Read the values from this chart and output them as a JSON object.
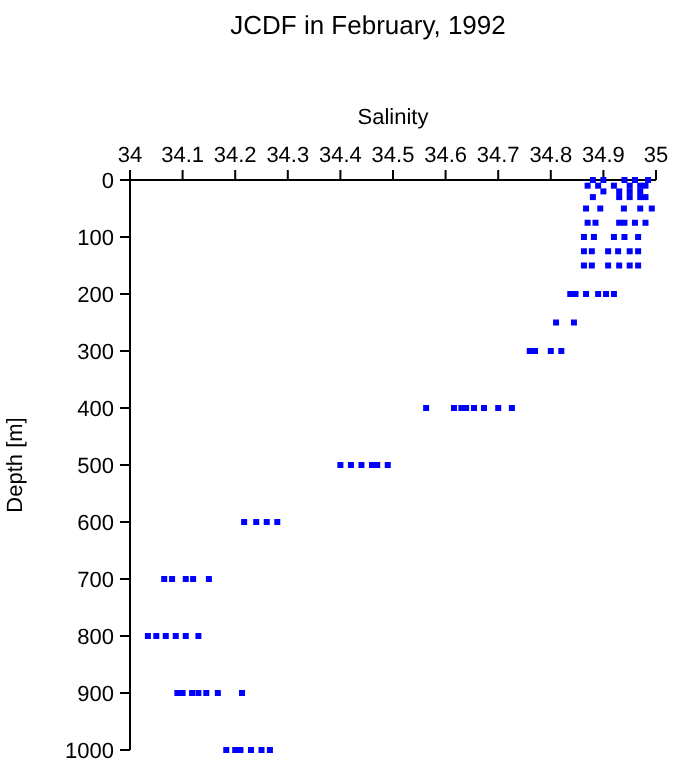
{
  "chart_data": {
    "type": "scatter",
    "title": "JCDF in February, 1992",
    "xlabel": "Salinity",
    "ylabel": "Depth [m]",
    "marker": "square",
    "grid": false,
    "xlim": [
      34,
      35
    ],
    "xticks": [
      34,
      34.1,
      34.2,
      34.3,
      34.4,
      34.5,
      34.6,
      34.7,
      34.8,
      34.9,
      35
    ],
    "ylim": [
      1000,
      0
    ],
    "yticks": [
      0,
      100,
      200,
      300,
      400,
      500,
      600,
      700,
      800,
      900,
      1000
    ],
    "series": [
      {
        "color": "#0000ff",
        "x": [
          34.88,
          34.9,
          34.94,
          34.96,
          34.985,
          34.87,
          34.89,
          34.92,
          34.95,
          34.97,
          34.98,
          34.9,
          34.93,
          34.95,
          34.97,
          34.88,
          34.93,
          34.95,
          34.97,
          34.98,
          34.867,
          34.894,
          34.939,
          34.97,
          34.992,
          34.87,
          34.885,
          34.93,
          34.94,
          34.96,
          34.98,
          34.863,
          34.882,
          34.92,
          34.94,
          34.966,
          34.863,
          34.878,
          34.909,
          34.928,
          34.95,
          34.966,
          34.863,
          34.878,
          34.909,
          34.93,
          34.95,
          34.966,
          34.837,
          34.847,
          34.867,
          34.89,
          34.905,
          34.92,
          34.81,
          34.844,
          34.76,
          34.77,
          34.8,
          34.82,
          34.563,
          34.616,
          34.63,
          34.639,
          34.654,
          34.673,
          34.7,
          34.726,
          34.4,
          34.42,
          34.44,
          34.46,
          34.47,
          34.49,
          34.217,
          34.24,
          34.26,
          34.28,
          34.065,
          34.08,
          34.106,
          34.12,
          34.15,
          34.034,
          34.05,
          34.068,
          34.087,
          34.106,
          34.13,
          34.09,
          34.1,
          34.118,
          34.13,
          34.145,
          34.167,
          34.213,
          34.183,
          34.2,
          34.21,
          34.23,
          34.25,
          34.266
        ],
        "values": [
          0,
          0,
          0,
          0,
          0,
          10,
          10,
          10,
          10,
          10,
          10,
          20,
          20,
          20,
          20,
          30,
          30,
          30,
          30,
          30,
          50,
          50,
          50,
          50,
          50,
          75,
          75,
          75,
          75,
          75,
          75,
          100,
          100,
          100,
          100,
          100,
          125,
          125,
          125,
          125,
          125,
          125,
          150,
          150,
          150,
          150,
          150,
          150,
          200,
          200,
          200,
          200,
          200,
          200,
          250,
          250,
          300,
          300,
          300,
          300,
          400,
          400,
          400,
          400,
          400,
          400,
          400,
          400,
          500,
          500,
          500,
          500,
          500,
          500,
          600,
          600,
          600,
          600,
          700,
          700,
          700,
          700,
          700,
          800,
          800,
          800,
          800,
          800,
          800,
          900,
          900,
          900,
          900,
          900,
          900,
          900,
          1000,
          1000,
          1000,
          1000,
          1000,
          1000
        ]
      }
    ]
  }
}
